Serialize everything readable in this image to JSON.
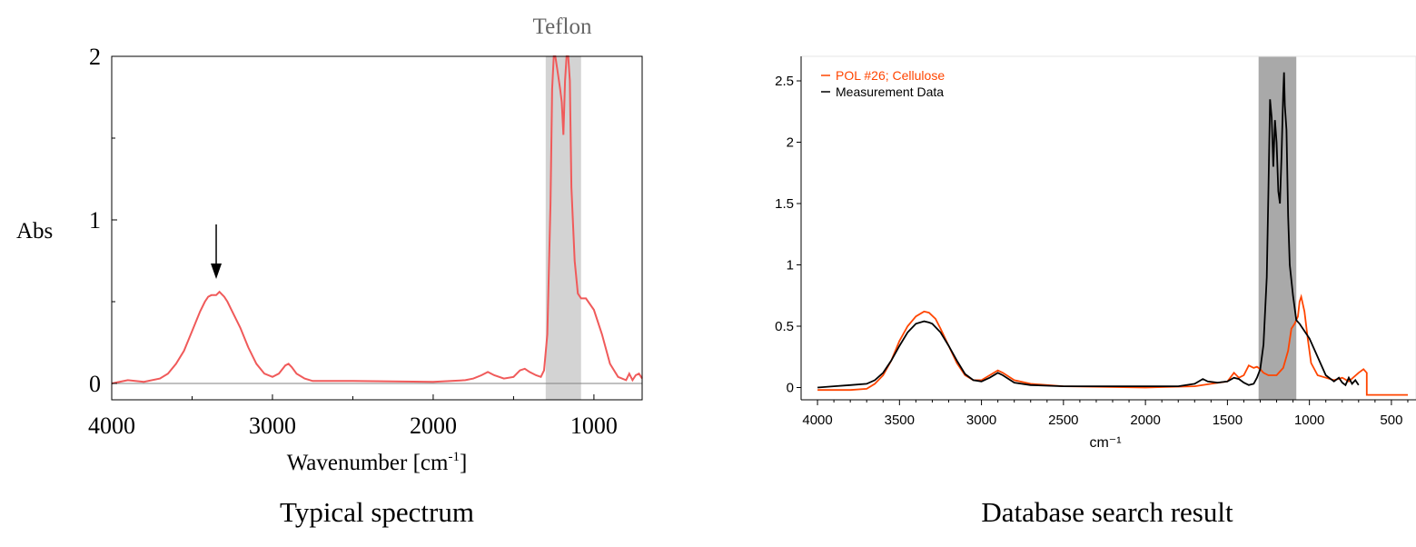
{
  "chart_data": [
    {
      "type": "line",
      "title": "Typical spectrum",
      "annotation": "Teflon",
      "xlabel": "Wavenumber [cm-1]",
      "xlabel_main": "Wavenumber [cm",
      "xlabel_sup": "-1",
      "xlabel_end": "]",
      "ylabel": "Abs",
      "xlim": [
        4000,
        700
      ],
      "ylim": [
        -0.1,
        2.0
      ],
      "x_ticks": [
        4000,
        3000,
        2000,
        1000
      ],
      "x_tick_labels": [
        "4000",
        "3000",
        "2000",
        "1000"
      ],
      "y_ticks": [
        0,
        1,
        2
      ],
      "y_tick_labels": [
        "0",
        "1",
        "2"
      ],
      "shaded_region": [
        1300,
        1080
      ],
      "arrow_at": 3350,
      "series": [
        {
          "color": "#f05a5a",
          "points": [
            [
              4000,
              0.0
            ],
            [
              3900,
              0.02
            ],
            [
              3800,
              0.01
            ],
            [
              3700,
              0.03
            ],
            [
              3650,
              0.06
            ],
            [
              3600,
              0.12
            ],
            [
              3550,
              0.2
            ],
            [
              3500,
              0.32
            ],
            [
              3450,
              0.44
            ],
            [
              3420,
              0.5
            ],
            [
              3400,
              0.53
            ],
            [
              3380,
              0.54
            ],
            [
              3350,
              0.54
            ],
            [
              3330,
              0.56
            ],
            [
              3300,
              0.53
            ],
            [
              3280,
              0.5
            ],
            [
              3250,
              0.44
            ],
            [
              3200,
              0.34
            ],
            [
              3150,
              0.22
            ],
            [
              3100,
              0.12
            ],
            [
              3050,
              0.06
            ],
            [
              3000,
              0.04
            ],
            [
              2960,
              0.06
            ],
            [
              2920,
              0.11
            ],
            [
              2900,
              0.12
            ],
            [
              2880,
              0.1
            ],
            [
              2850,
              0.06
            ],
            [
              2800,
              0.03
            ],
            [
              2750,
              0.015
            ],
            [
              2500,
              0.015
            ],
            [
              2000,
              0.01
            ],
            [
              1800,
              0.02
            ],
            [
              1750,
              0.03
            ],
            [
              1700,
              0.05
            ],
            [
              1660,
              0.07
            ],
            [
              1620,
              0.05
            ],
            [
              1560,
              0.03
            ],
            [
              1500,
              0.04
            ],
            [
              1460,
              0.08
            ],
            [
              1430,
              0.09
            ],
            [
              1400,
              0.07
            ],
            [
              1360,
              0.05
            ],
            [
              1330,
              0.04
            ],
            [
              1310,
              0.08
            ],
            [
              1290,
              0.3
            ],
            [
              1270,
              1.1
            ],
            [
              1260,
              1.8
            ],
            [
              1250,
              2.0
            ],
            [
              1240,
              2.0
            ],
            [
              1225,
              1.9
            ],
            [
              1210,
              1.8
            ],
            [
              1200,
              1.72
            ],
            [
              1190,
              1.52
            ],
            [
              1180,
              1.85
            ],
            [
              1170,
              2.0
            ],
            [
              1160,
              2.0
            ],
            [
              1150,
              1.85
            ],
            [
              1140,
              1.2
            ],
            [
              1120,
              0.75
            ],
            [
              1100,
              0.55
            ],
            [
              1080,
              0.52
            ],
            [
              1050,
              0.52
            ],
            [
              1000,
              0.45
            ],
            [
              950,
              0.3
            ],
            [
              900,
              0.12
            ],
            [
              850,
              0.04
            ],
            [
              800,
              0.02
            ],
            [
              780,
              0.06
            ],
            [
              760,
              0.02
            ],
            [
              740,
              0.05
            ],
            [
              720,
              0.06
            ],
            [
              700,
              0.03
            ]
          ]
        }
      ]
    },
    {
      "type": "line",
      "title": "Database search result",
      "xlabel": "cm⁻¹",
      "xlim": [
        4100,
        350
      ],
      "ylim": [
        -0.1,
        2.7
      ],
      "x_ticks": [
        4000,
        3500,
        3000,
        2500,
        2000,
        1500,
        1000,
        500
      ],
      "x_tick_labels": [
        "4000",
        "3500",
        "3000",
        "2500",
        "2000",
        "1500",
        "1000",
        "500"
      ],
      "y_ticks": [
        0,
        0.5,
        1,
        1.5,
        2,
        2.5
      ],
      "y_tick_labels": [
        "0",
        "0.5",
        "1",
        "1.5",
        "2",
        "2.5"
      ],
      "shaded_region": [
        1310,
        1080
      ],
      "legend_position": "top-left",
      "series": [
        {
          "name": "POL #26; Cellulose",
          "color": "#ff4500",
          "points": [
            [
              4000,
              -0.02
            ],
            [
              3800,
              -0.02
            ],
            [
              3700,
              -0.01
            ],
            [
              3650,
              0.03
            ],
            [
              3600,
              0.1
            ],
            [
              3550,
              0.22
            ],
            [
              3500,
              0.38
            ],
            [
              3450,
              0.5
            ],
            [
              3400,
              0.58
            ],
            [
              3350,
              0.62
            ],
            [
              3320,
              0.61
            ],
            [
              3280,
              0.56
            ],
            [
              3250,
              0.48
            ],
            [
              3200,
              0.34
            ],
            [
              3150,
              0.2
            ],
            [
              3100,
              0.1
            ],
            [
              3050,
              0.06
            ],
            [
              3000,
              0.06
            ],
            [
              2950,
              0.1
            ],
            [
              2900,
              0.14
            ],
            [
              2870,
              0.12
            ],
            [
              2800,
              0.06
            ],
            [
              2700,
              0.03
            ],
            [
              2500,
              0.01
            ],
            [
              2000,
              0.0
            ],
            [
              1700,
              0.01
            ],
            [
              1600,
              0.03
            ],
            [
              1500,
              0.05
            ],
            [
              1460,
              0.12
            ],
            [
              1430,
              0.08
            ],
            [
              1400,
              0.1
            ],
            [
              1370,
              0.18
            ],
            [
              1340,
              0.16
            ],
            [
              1320,
              0.17
            ],
            [
              1300,
              0.15
            ],
            [
              1280,
              0.12
            ],
            [
              1250,
              0.1
            ],
            [
              1200,
              0.1
            ],
            [
              1160,
              0.16
            ],
            [
              1130,
              0.3
            ],
            [
              1110,
              0.48
            ],
            [
              1090,
              0.52
            ],
            [
              1070,
              0.58
            ],
            [
              1060,
              0.7
            ],
            [
              1050,
              0.74
            ],
            [
              1040,
              0.68
            ],
            [
              1030,
              0.62
            ],
            [
              1010,
              0.4
            ],
            [
              990,
              0.2
            ],
            [
              950,
              0.1
            ],
            [
              900,
              0.08
            ],
            [
              850,
              0.06
            ],
            [
              800,
              0.08
            ],
            [
              760,
              0.05
            ],
            [
              700,
              0.12
            ],
            [
              670,
              0.15
            ],
            [
              650,
              0.12
            ],
            [
              650,
              -0.06
            ],
            [
              400,
              -0.06
            ]
          ]
        },
        {
          "name": "Measurement Data",
          "color": "#000000",
          "points": [
            [
              4000,
              0.0
            ],
            [
              3900,
              0.01
            ],
            [
              3800,
              0.02
            ],
            [
              3700,
              0.03
            ],
            [
              3650,
              0.06
            ],
            [
              3600,
              0.12
            ],
            [
              3550,
              0.22
            ],
            [
              3500,
              0.34
            ],
            [
              3450,
              0.45
            ],
            [
              3400,
              0.52
            ],
            [
              3350,
              0.54
            ],
            [
              3320,
              0.53
            ],
            [
              3300,
              0.52
            ],
            [
              3250,
              0.45
            ],
            [
              3200,
              0.34
            ],
            [
              3150,
              0.22
            ],
            [
              3100,
              0.11
            ],
            [
              3050,
              0.06
            ],
            [
              3000,
              0.05
            ],
            [
              2950,
              0.08
            ],
            [
              2900,
              0.12
            ],
            [
              2870,
              0.1
            ],
            [
              2800,
              0.04
            ],
            [
              2700,
              0.02
            ],
            [
              2500,
              0.01
            ],
            [
              2000,
              0.01
            ],
            [
              1800,
              0.01
            ],
            [
              1700,
              0.03
            ],
            [
              1650,
              0.07
            ],
            [
              1620,
              0.05
            ],
            [
              1560,
              0.04
            ],
            [
              1500,
              0.05
            ],
            [
              1460,
              0.08
            ],
            [
              1430,
              0.07
            ],
            [
              1400,
              0.04
            ],
            [
              1370,
              0.02
            ],
            [
              1340,
              0.03
            ],
            [
              1320,
              0.08
            ],
            [
              1300,
              0.15
            ],
            [
              1280,
              0.35
            ],
            [
              1260,
              0.9
            ],
            [
              1250,
              1.6
            ],
            [
              1240,
              2.35
            ],
            [
              1230,
              2.2
            ],
            [
              1220,
              1.8
            ],
            [
              1210,
              2.18
            ],
            [
              1200,
              2.0
            ],
            [
              1190,
              1.6
            ],
            [
              1180,
              1.5
            ],
            [
              1170,
              1.9
            ],
            [
              1160,
              2.4
            ],
            [
              1155,
              2.57
            ],
            [
              1150,
              2.3
            ],
            [
              1140,
              2.1
            ],
            [
              1130,
              1.4
            ],
            [
              1120,
              1.0
            ],
            [
              1100,
              0.75
            ],
            [
              1080,
              0.55
            ],
            [
              1060,
              0.52
            ],
            [
              1050,
              0.5
            ],
            [
              1000,
              0.4
            ],
            [
              950,
              0.25
            ],
            [
              900,
              0.1
            ],
            [
              850,
              0.05
            ],
            [
              820,
              0.08
            ],
            [
              800,
              0.04
            ],
            [
              780,
              0.02
            ],
            [
              760,
              0.08
            ],
            [
              740,
              0.03
            ],
            [
              720,
              0.06
            ],
            [
              700,
              0.02
            ]
          ]
        }
      ]
    }
  ]
}
